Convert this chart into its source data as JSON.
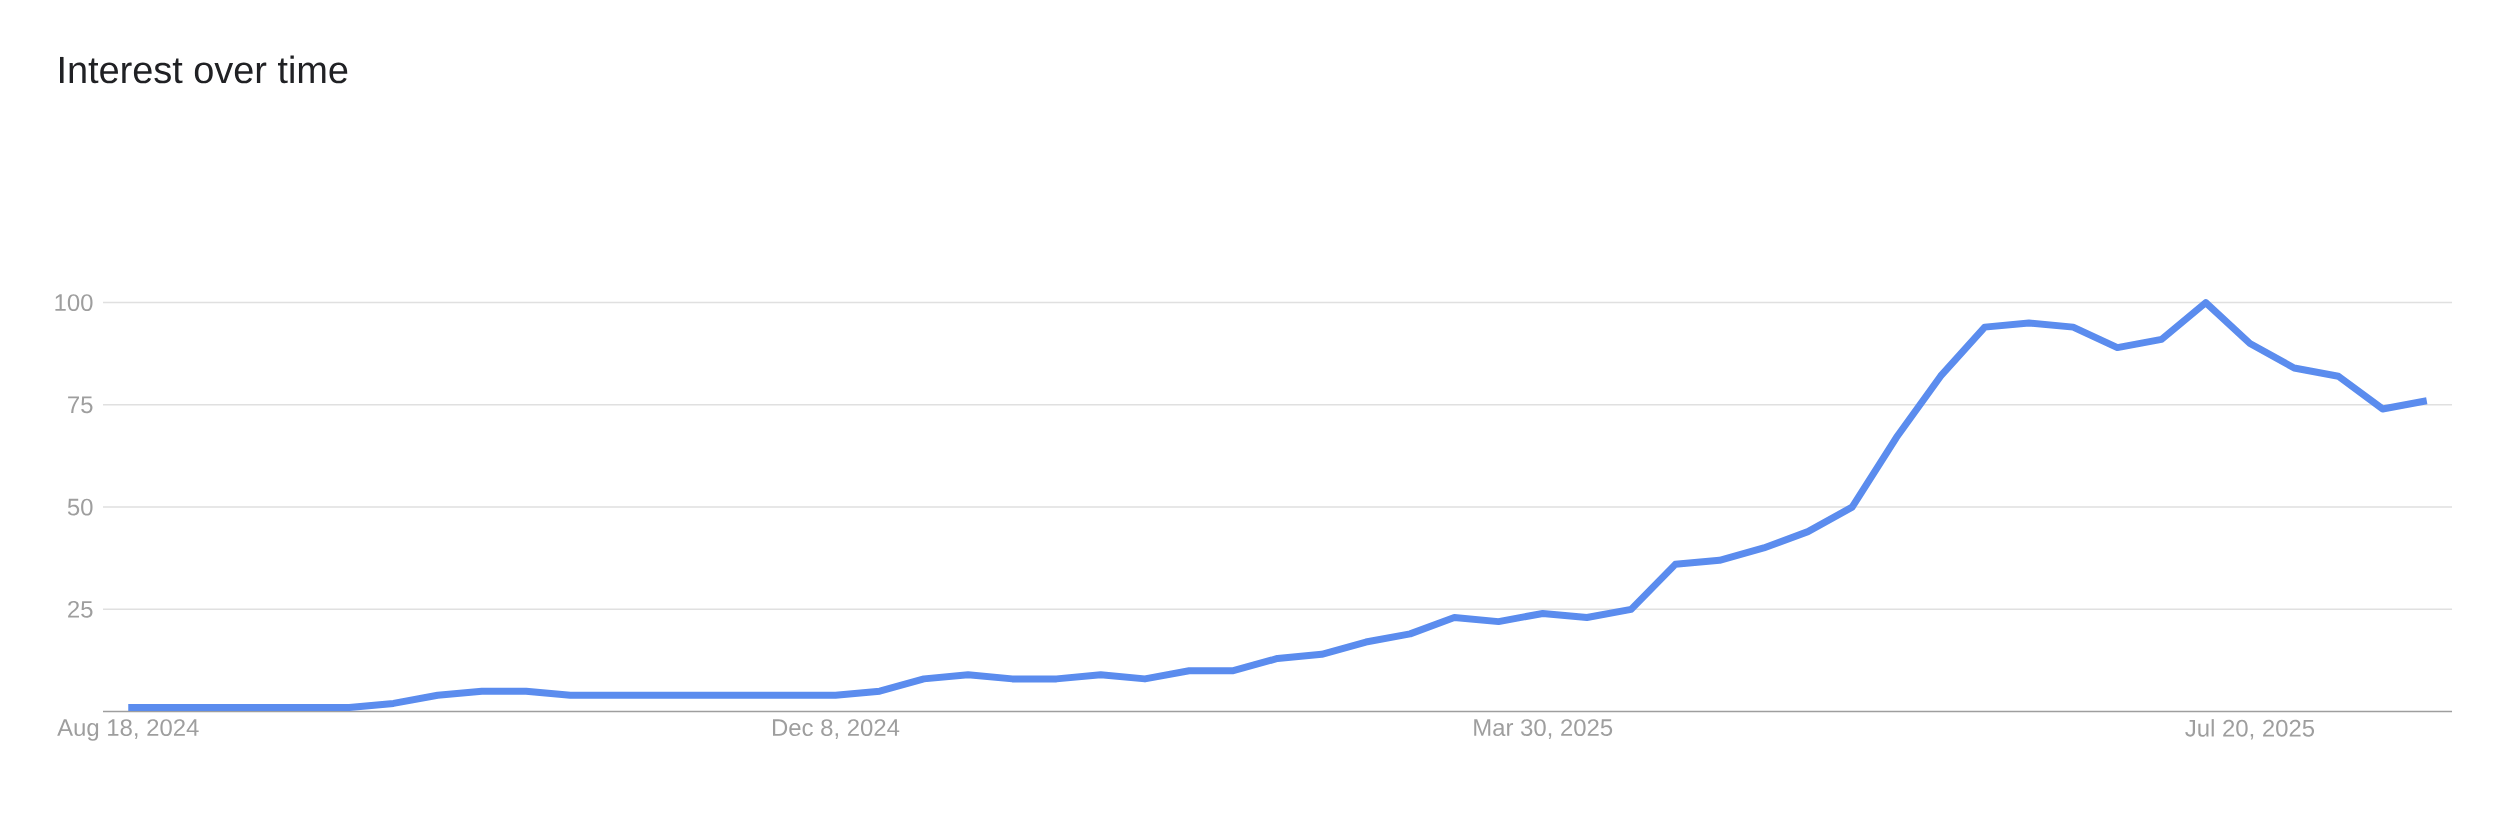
{
  "chart_data": {
    "type": "line",
    "title": "Interest over time",
    "x": [
      "2024-08-18",
      "2024-08-25",
      "2024-09-01",
      "2024-09-08",
      "2024-09-15",
      "2024-09-22",
      "2024-09-29",
      "2024-10-06",
      "2024-10-13",
      "2024-10-20",
      "2024-10-27",
      "2024-11-03",
      "2024-11-10",
      "2024-11-17",
      "2024-11-24",
      "2024-12-01",
      "2024-12-08",
      "2024-12-15",
      "2024-12-22",
      "2024-12-29",
      "2025-01-05",
      "2025-01-12",
      "2025-01-19",
      "2025-01-26",
      "2025-02-02",
      "2025-02-09",
      "2025-02-16",
      "2025-02-23",
      "2025-03-02",
      "2025-03-09",
      "2025-03-16",
      "2025-03-23",
      "2025-03-30",
      "2025-04-06",
      "2025-04-13",
      "2025-04-20",
      "2025-04-27",
      "2025-05-04",
      "2025-05-11",
      "2025-05-18",
      "2025-05-25",
      "2025-06-01",
      "2025-06-08",
      "2025-06-15",
      "2025-06-22",
      "2025-06-29",
      "2025-07-06",
      "2025-07-13",
      "2025-07-20",
      "2025-07-27",
      "2025-08-03",
      "2025-08-10",
      "2025-08-17"
    ],
    "series": [
      {
        "color": "#5b8cee",
        "values": [
          1,
          1,
          1,
          1,
          1,
          1,
          2,
          4,
          5,
          5,
          4,
          4,
          4,
          4,
          4,
          4,
          4,
          5,
          8,
          9,
          8,
          8,
          9,
          8,
          10,
          10,
          13,
          14,
          17,
          19,
          23,
          22,
          24,
          23,
          25,
          36,
          37,
          40,
          44,
          50,
          67,
          82,
          94,
          95,
          94,
          89,
          91,
          100,
          90,
          84,
          82,
          74,
          76
        ]
      }
    ],
    "xlim": [
      "2024-08-14",
      "2025-08-21"
    ],
    "xticks": [
      {
        "value": "2024-08-18",
        "label": "Aug 18, 2024"
      },
      {
        "value": "2024-12-08",
        "label": "Dec 8, 2024"
      },
      {
        "value": "2025-03-30",
        "label": "Mar 30, 2025"
      },
      {
        "value": "2025-07-20",
        "label": "Jul 20, 2025"
      }
    ],
    "ylim": [
      0,
      100
    ],
    "yticks": [
      25,
      50,
      75,
      100
    ],
    "grid": "y",
    "legend": false,
    "marker": "none",
    "line_style": "solid"
  }
}
